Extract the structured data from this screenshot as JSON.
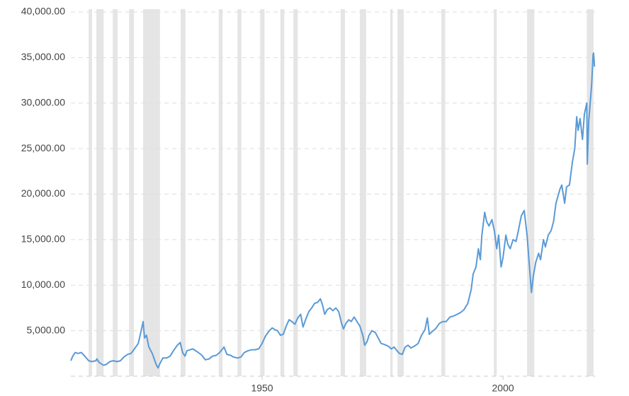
{
  "chart_data": {
    "type": "line",
    "color": "#5a9ad6",
    "grid": true,
    "xlim": [
      1910.3,
      2019.1
    ],
    "xticks": [
      1950,
      2000
    ],
    "ylim": [
      0,
      40000
    ],
    "yticks": [
      {
        "value": 5000,
        "label": "5,000.00"
      },
      {
        "value": 10000,
        "label": "10,000.00"
      },
      {
        "value": 15000,
        "label": "15,000.00"
      },
      {
        "value": 20000,
        "label": "20,000.00"
      },
      {
        "value": 25000,
        "label": "25,000.00"
      },
      {
        "value": 30000,
        "label": "30,000.00"
      },
      {
        "value": 35000,
        "label": "35,000.00"
      },
      {
        "value": 40000,
        "label": "40,000.00"
      }
    ],
    "recession_color": "#e5e5e5",
    "recessions": [
      [
        1914.0,
        1914.7
      ],
      [
        1915.6,
        1917.1
      ],
      [
        1919.0,
        1920.0
      ],
      [
        1922.4,
        1923.4
      ],
      [
        1925.3,
        1928.8
      ],
      [
        1933.1,
        1934.1
      ],
      [
        1941.0,
        1941.8
      ],
      [
        1944.9,
        1945.7
      ],
      [
        1949.6,
        1950.5
      ],
      [
        1953.8,
        1954.6
      ],
      [
        1956.5,
        1957.4
      ],
      [
        1966.3,
        1967.2
      ],
      [
        1970.3,
        1971.6
      ],
      [
        1976.6,
        1977.1
      ],
      [
        1978.1,
        1979.4
      ],
      [
        1987.2,
        1988.0
      ],
      [
        1998.1,
        1998.7
      ],
      [
        2005.0,
        2006.5
      ],
      [
        2017.4,
        2018.8
      ]
    ],
    "x": [
      1910.3,
      1910.7,
      1911.2,
      1911.8,
      1912.5,
      1913.2,
      1914.0,
      1914.7,
      1915.5,
      1915.7,
      1916.2,
      1917.1,
      1917.7,
      1918.4,
      1919.1,
      1919.9,
      1920.6,
      1921.3,
      1922.1,
      1922.8,
      1923.5,
      1924.3,
      1924.9,
      1925.3,
      1925.6,
      1926.0,
      1926.5,
      1927.2,
      1928.0,
      1928.4,
      1928.8,
      1929.4,
      1930.2,
      1930.9,
      1931.6,
      1932.4,
      1933.0,
      1933.5,
      1934.0,
      1934.4,
      1935.0,
      1935.6,
      1936.5,
      1937.5,
      1938.2,
      1939.0,
      1939.7,
      1940.5,
      1941.2,
      1942.1,
      1942.7,
      1943.4,
      1944.1,
      1944.9,
      1945.6,
      1946.3,
      1947.1,
      1947.8,
      1948.5,
      1949.3,
      1950.0,
      1950.7,
      1951.5,
      1952.1,
      1952.7,
      1953.2,
      1953.8,
      1954.4,
      1955.0,
      1955.6,
      1956.2,
      1956.8,
      1957.4,
      1958.0,
      1958.5,
      1959.1,
      1959.7,
      1960.3,
      1960.9,
      1961.5,
      1962.1,
      1962.5,
      1963.0,
      1963.5,
      1964.1,
      1964.7,
      1965.3,
      1965.9,
      1966.5,
      1966.9,
      1967.4,
      1968.0,
      1968.5,
      1969.1,
      1969.7,
      1970.3,
      1970.9,
      1971.3,
      1971.8,
      1972.2,
      1972.8,
      1973.5,
      1974.1,
      1974.7,
      1975.3,
      1976.2,
      1976.8,
      1977.4,
      1978.0,
      1978.5,
      1979.1,
      1979.7,
      1980.3,
      1980.9,
      1981.6,
      1982.4,
      1983.1,
      1983.8,
      1984.3,
      1984.7,
      1985.3,
      1986.0,
      1986.8,
      1987.5,
      1988.2,
      1989.0,
      1989.7,
      1990.5,
      1991.2,
      1991.9,
      1992.7,
      1993.4,
      1993.8,
      1994.4,
      1994.9,
      1995.3,
      1995.6,
      1996.2,
      1996.6,
      1997.1,
      1997.7,
      1998.2,
      1998.7,
      1999.1,
      1999.6,
      2000.0,
      2000.6,
      2001.0,
      2001.5,
      2002.1,
      2002.7,
      2003.2,
      2003.8,
      2004.4,
      2005.0,
      2005.5,
      2005.9,
      2006.3,
      2006.8,
      2007.4,
      2007.8,
      2008.4,
      2008.8,
      2009.4,
      2010.0,
      2010.5,
      2011.0,
      2011.8,
      2012.2,
      2012.8,
      2013.2,
      2013.8,
      2014.4,
      2014.9,
      2015.3,
      2015.6,
      2016.0,
      2016.5,
      2016.9,
      2017.4,
      2017.5,
      2017.8,
      2018.1,
      2018.4,
      2018.7,
      2018.8,
      2019.0
    ],
    "values": [
      1700,
      2200,
      2600,
      2500,
      2600,
      2200,
      1700,
      1600,
      1700,
      1900,
      1500,
      1200,
      1300,
      1600,
      1700,
      1600,
      1700,
      2100,
      2400,
      2500,
      3000,
      3600,
      5000,
      6000,
      4200,
      4500,
      3200,
      2500,
      1300,
      900,
      1400,
      2000,
      2000,
      2200,
      2800,
      3400,
      3700,
      2600,
      2200,
      2800,
      2900,
      3000,
      2700,
      2300,
      1800,
      1900,
      2200,
      2300,
      2600,
      3200,
      2400,
      2300,
      2100,
      2000,
      2100,
      2600,
      2800,
      2900,
      2900,
      3000,
      3600,
      4400,
      5000,
      5300,
      5100,
      5000,
      4500,
      4600,
      5500,
      6200,
      6000,
      5700,
      6400,
      6800,
      5400,
      6300,
      7100,
      7500,
      8000,
      8100,
      8500,
      7900,
      6800,
      7300,
      7500,
      7200,
      7500,
      7100,
      5800,
      5200,
      5800,
      6200,
      6000,
      6500,
      6000,
      5500,
      4500,
      3400,
      3800,
      4500,
      5000,
      4800,
      4200,
      3600,
      3500,
      3300,
      3000,
      3200,
      2800,
      2500,
      2400,
      3200,
      3400,
      3100,
      3300,
      3600,
      4500,
      5100,
      6400,
      4600,
      4900,
      5200,
      5800,
      6000,
      6000,
      6500,
      6600,
      6800,
      7000,
      7300,
      8000,
      9500,
      11200,
      12000,
      14000,
      12800,
      15400,
      18000,
      17000,
      16500,
      17200,
      16000,
      14000,
      15500,
      12000,
      13000,
      15500,
      14500,
      14000,
      15000,
      14800,
      16000,
      17600,
      18200,
      15500,
      12000,
      9200,
      11000,
      12500,
      13500,
      12800,
      15000,
      14200,
      15500,
      16000,
      17000,
      19000,
      20500,
      21000,
      19000,
      20800,
      21000,
      23500,
      25000,
      28500,
      27000,
      28300,
      26000,
      28800,
      30000,
      23300,
      28000,
      30000,
      32000,
      35300,
      35500,
      34000
    ]
  }
}
